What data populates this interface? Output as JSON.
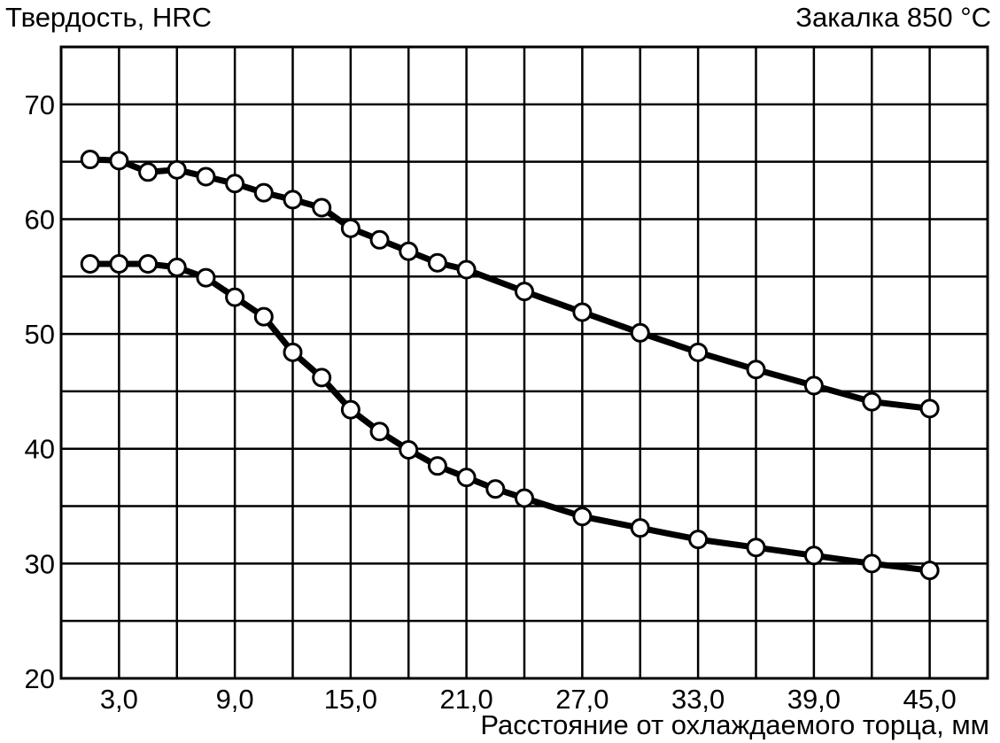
{
  "chart_data": {
    "type": "line",
    "title": "",
    "ylabel": "Твердость, HRC",
    "subtitle": "Закалка 850 °C",
    "xlabel": "Расстояние от охлаждаемого торца, мм",
    "xlim": [
      0,
      48
    ],
    "ylim": [
      20,
      75
    ],
    "x_ticks": [
      3,
      9,
      15,
      21,
      27,
      33,
      39,
      45
    ],
    "x_tick_labels": [
      "3,0",
      "9,0",
      "15,0",
      "21,0",
      "27,0",
      "33,0",
      "39,0",
      "45,0"
    ],
    "x_grid": [
      6,
      12,
      18,
      24,
      30,
      36,
      42
    ],
    "y_ticks": [
      20,
      30,
      40,
      50,
      60,
      70
    ],
    "y_tick_labels": [
      "20",
      "30",
      "40",
      "50",
      "60",
      "70"
    ],
    "y_grid": [
      25,
      30,
      35,
      40,
      45,
      50,
      55,
      60,
      65,
      70
    ],
    "grid": true,
    "series": [
      {
        "name": "",
        "x": [
          1.5,
          3.0,
          4.5,
          6.0,
          7.5,
          9.0,
          10.5,
          12.0,
          13.5,
          15.0,
          16.5,
          18.0,
          19.5,
          21.0,
          24.0,
          27.0,
          30.0,
          33.0,
          36.0,
          39.0,
          42.0,
          45.0
        ],
        "y": [
          65.2,
          65.1,
          64.1,
          64.3,
          63.7,
          63.1,
          62.3,
          61.7,
          61.0,
          59.2,
          58.2,
          57.2,
          56.2,
          55.6,
          53.7,
          51.9,
          50.1,
          48.4,
          46.9,
          45.5,
          44.1,
          43.5
        ]
      },
      {
        "name": "",
        "x": [
          1.5,
          3.0,
          4.5,
          6.0,
          7.5,
          9.0,
          10.5,
          12.0,
          13.5,
          15.0,
          16.5,
          18.0,
          19.5,
          21.0,
          22.5,
          24.0,
          27.0,
          30.0,
          33.0,
          36.0,
          39.0,
          42.0,
          45.0
        ],
        "y": [
          56.1,
          56.1,
          56.1,
          55.8,
          54.9,
          53.2,
          51.5,
          48.4,
          46.2,
          43.4,
          41.5,
          39.9,
          38.5,
          37.5,
          36.5,
          35.7,
          34.1,
          33.1,
          32.1,
          31.4,
          30.7,
          30.0,
          29.4
        ]
      }
    ]
  }
}
